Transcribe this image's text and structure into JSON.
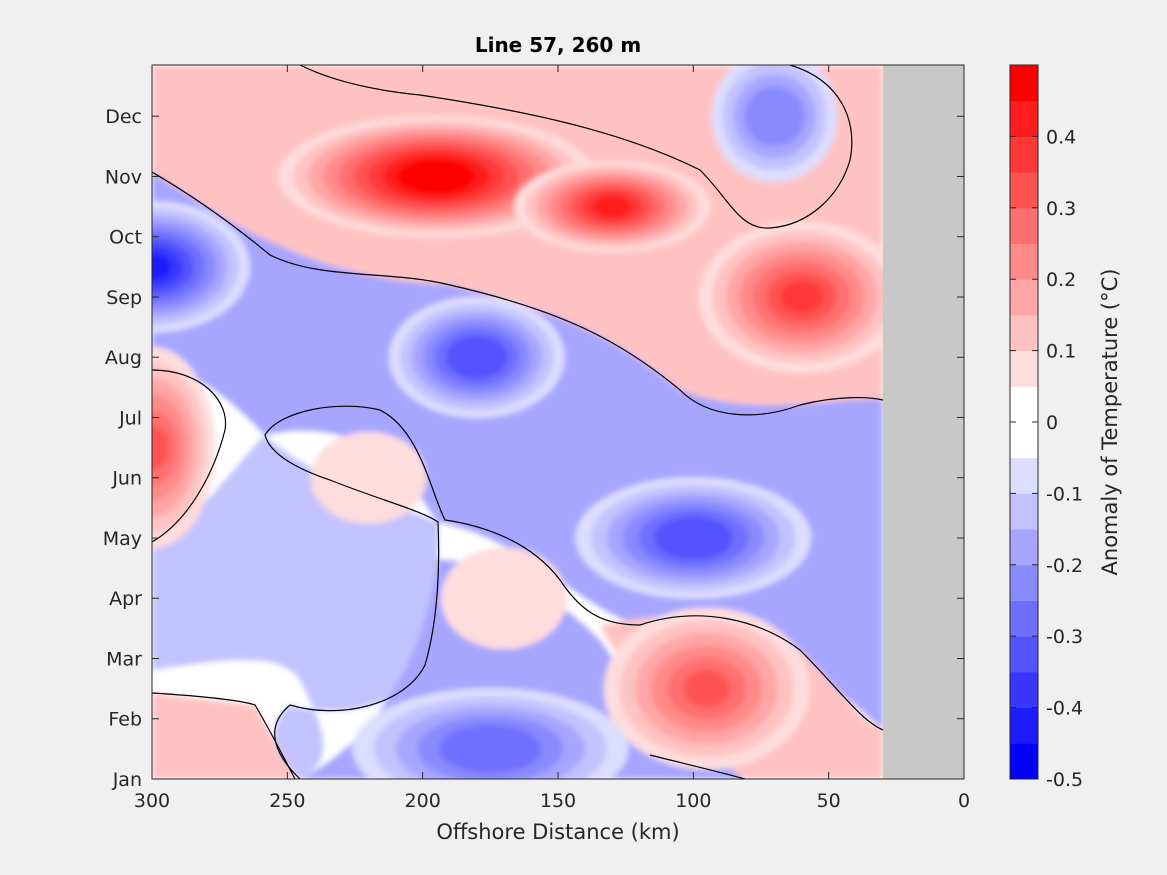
{
  "chart_data": {
    "type": "heatmap",
    "title": "Line 57, 260 m",
    "xlabel": "Offshore Distance (km)",
    "ylabel": "",
    "x_reversed": true,
    "xlim": [
      300,
      0
    ],
    "xticks": [
      "300",
      "250",
      "200",
      "150",
      "100",
      "50",
      "0"
    ],
    "yticks": [
      "Jan",
      "Feb",
      "Mar",
      "Apr",
      "May",
      "Jun",
      "Jul",
      "Aug",
      "Sep",
      "Oct",
      "Nov",
      "Dec"
    ],
    "data_coverage_km": [
      300,
      30
    ],
    "no_data_color": "#c8c8c8",
    "colorbar": {
      "label": "Anomaly of Temperature (°C)",
      "range": [
        -0.5,
        0.5
      ],
      "step": 0.05,
      "ticks": [
        "0.4",
        "0.3",
        "0.2",
        "0.1",
        "0",
        "-0.1",
        "-0.2",
        "-0.3",
        "-0.4",
        "-0.5"
      ]
    },
    "features": [
      {
        "sign": "+",
        "peak": 0.5,
        "x_km": 195,
        "month": "Nov"
      },
      {
        "sign": "+",
        "peak": 0.4,
        "x_km": 130,
        "month": "Oct-Nov"
      },
      {
        "sign": "+",
        "peak": 0.35,
        "x_km": 60,
        "month": "Sep"
      },
      {
        "sign": "+",
        "peak": 0.3,
        "x_km": 95,
        "month": "Feb-Mar"
      },
      {
        "sign": "+",
        "peak": 0.3,
        "x_km": 300,
        "month": "Jun-Jul"
      },
      {
        "sign": "+",
        "peak": 0.1,
        "x_km": 220,
        "month": "Jun"
      },
      {
        "sign": "+",
        "peak": 0.1,
        "x_km": 170,
        "month": "Apr"
      },
      {
        "sign": "-",
        "peak": -0.4,
        "x_km": 300,
        "month": "Sep-Oct"
      },
      {
        "sign": "-",
        "peak": -0.35,
        "x_km": 180,
        "month": "Aug"
      },
      {
        "sign": "-",
        "peak": -0.35,
        "x_km": 100,
        "month": "May"
      },
      {
        "sign": "-",
        "peak": -0.3,
        "x_km": 175,
        "month": "Jan-Feb"
      },
      {
        "sign": "-",
        "peak": -0.25,
        "x_km": 70,
        "month": "Dec"
      }
    ]
  }
}
